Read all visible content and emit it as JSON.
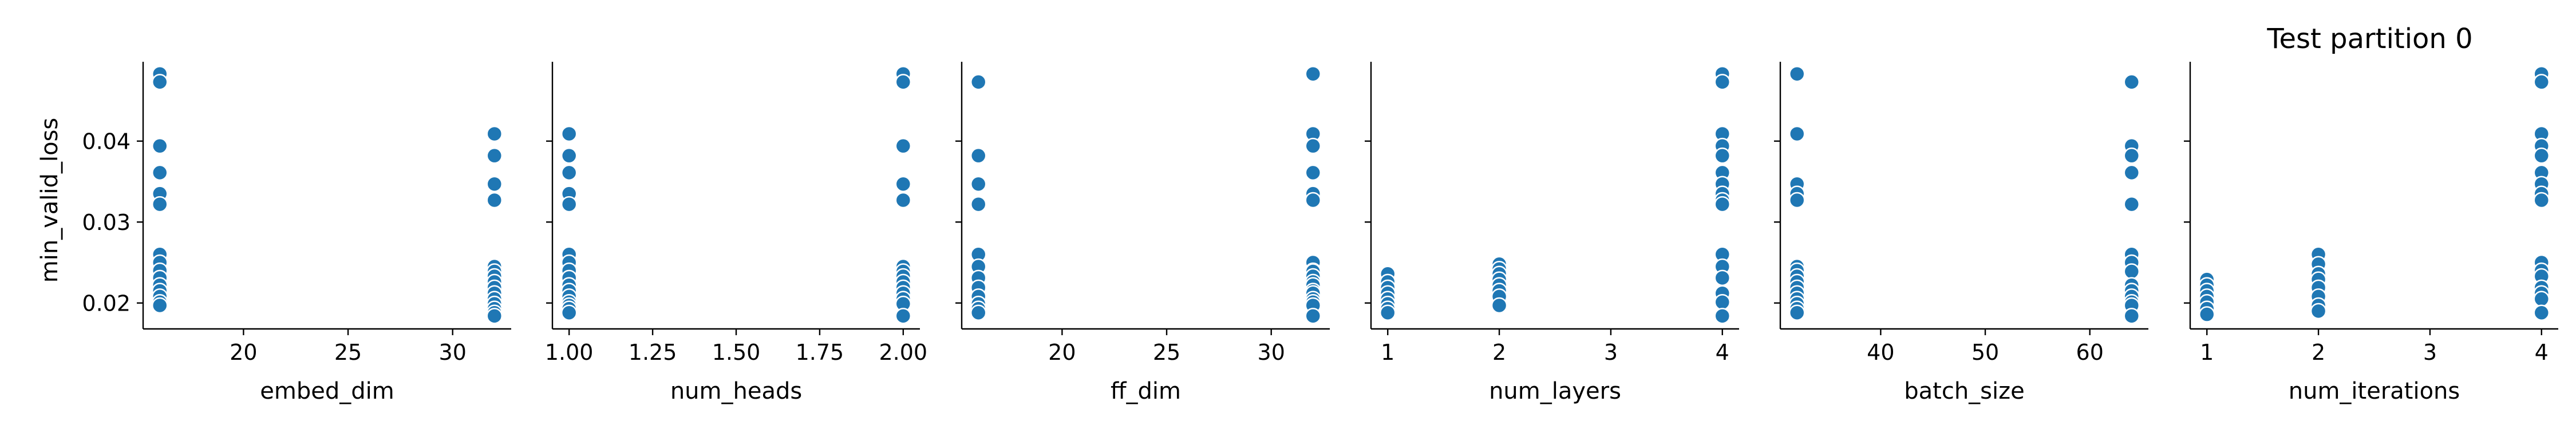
{
  "figure": {
    "title": "Test partition 0",
    "ylabel": "min_valid_loss"
  },
  "style": {
    "marker_color": "#1f77b4",
    "marker_edge": "#ffffff",
    "axis_color": "#000000"
  },
  "chart_data": [
    {
      "type": "scatter",
      "xlabel": "embed_dim",
      "ylabel": "min_valid_loss",
      "xlim": [
        15.2,
        32.8
      ],
      "ylim": [
        0.0168,
        0.0498
      ],
      "xticks": [
        20,
        25,
        30
      ],
      "yticks": [
        0.02,
        0.03,
        0.04
      ],
      "grid": false,
      "points": [
        [
          16,
          0.0483
        ],
        [
          16,
          0.0473
        ],
        [
          16,
          0.0394
        ],
        [
          16,
          0.0361
        ],
        [
          16,
          0.0335
        ],
        [
          16,
          0.0322
        ],
        [
          16,
          0.026
        ],
        [
          16,
          0.025
        ],
        [
          16,
          0.024
        ],
        [
          16,
          0.0231
        ],
        [
          16,
          0.0222
        ],
        [
          16,
          0.0215
        ],
        [
          16,
          0.0208
        ],
        [
          16,
          0.0201
        ],
        [
          16,
          0.0197
        ],
        [
          32,
          0.0409
        ],
        [
          32,
          0.0382
        ],
        [
          32,
          0.0347
        ],
        [
          32,
          0.0327
        ],
        [
          32,
          0.0245
        ],
        [
          32,
          0.0239
        ],
        [
          32,
          0.0233
        ],
        [
          32,
          0.0226
        ],
        [
          32,
          0.0219
        ],
        [
          32,
          0.0212
        ],
        [
          32,
          0.0205
        ],
        [
          32,
          0.0199
        ],
        [
          32,
          0.0193
        ],
        [
          32,
          0.0188
        ],
        [
          32,
          0.0184
        ]
      ]
    },
    {
      "type": "scatter",
      "xlabel": "num_heads",
      "ylabel": "",
      "xlim": [
        0.95,
        2.05
      ],
      "ylim": [
        0.0168,
        0.0498
      ],
      "xticks": [
        1.0,
        1.25,
        1.5,
        1.75,
        2.0
      ],
      "xtick_labels": [
        "1.00",
        "1.25",
        "1.50",
        "1.75",
        "2.00"
      ],
      "grid": false,
      "points": [
        [
          1,
          0.0409
        ],
        [
          1,
          0.0382
        ],
        [
          1,
          0.0361
        ],
        [
          1,
          0.0335
        ],
        [
          1,
          0.0322
        ],
        [
          1,
          0.026
        ],
        [
          1,
          0.025
        ],
        [
          1,
          0.024
        ],
        [
          1,
          0.0231
        ],
        [
          1,
          0.0222
        ],
        [
          1,
          0.0215
        ],
        [
          1,
          0.0208
        ],
        [
          1,
          0.0201
        ],
        [
          1,
          0.0197
        ],
        [
          1,
          0.0193
        ],
        [
          1,
          0.0188
        ],
        [
          2,
          0.0483
        ],
        [
          2,
          0.0473
        ],
        [
          2,
          0.0394
        ],
        [
          2,
          0.0347
        ],
        [
          2,
          0.0327
        ],
        [
          2,
          0.0245
        ],
        [
          2,
          0.0239
        ],
        [
          2,
          0.0233
        ],
        [
          2,
          0.0226
        ],
        [
          2,
          0.0219
        ],
        [
          2,
          0.0212
        ],
        [
          2,
          0.0205
        ],
        [
          2,
          0.0199
        ],
        [
          2,
          0.0184
        ]
      ]
    },
    {
      "type": "scatter",
      "xlabel": "ff_dim",
      "ylabel": "",
      "xlim": [
        15.2,
        32.8
      ],
      "ylim": [
        0.0168,
        0.0498
      ],
      "xticks": [
        20,
        25,
        30
      ],
      "grid": false,
      "points": [
        [
          16,
          0.0473
        ],
        [
          16,
          0.0382
        ],
        [
          16,
          0.0347
        ],
        [
          16,
          0.0322
        ],
        [
          16,
          0.026
        ],
        [
          16,
          0.0245
        ],
        [
          16,
          0.0231
        ],
        [
          16,
          0.0219
        ],
        [
          16,
          0.0208
        ],
        [
          16,
          0.0199
        ],
        [
          16,
          0.0193
        ],
        [
          16,
          0.0188
        ],
        [
          32,
          0.0483
        ],
        [
          32,
          0.0409
        ],
        [
          32,
          0.0394
        ],
        [
          32,
          0.0361
        ],
        [
          32,
          0.0335
        ],
        [
          32,
          0.0327
        ],
        [
          32,
          0.025
        ],
        [
          32,
          0.024
        ],
        [
          32,
          0.0239
        ],
        [
          32,
          0.0233
        ],
        [
          32,
          0.0226
        ],
        [
          32,
          0.0222
        ],
        [
          32,
          0.0215
        ],
        [
          32,
          0.0212
        ],
        [
          32,
          0.0205
        ],
        [
          32,
          0.0201
        ],
        [
          32,
          0.0197
        ],
        [
          32,
          0.0184
        ]
      ]
    },
    {
      "type": "scatter",
      "xlabel": "num_layers",
      "ylabel": "",
      "xlim": [
        0.85,
        4.15
      ],
      "ylim": [
        0.0168,
        0.0498
      ],
      "xticks": [
        1,
        2,
        3,
        4
      ],
      "grid": false,
      "points": [
        [
          1,
          0.0236
        ],
        [
          1,
          0.0226
        ],
        [
          1,
          0.0219
        ],
        [
          1,
          0.0212
        ],
        [
          1,
          0.0205
        ],
        [
          1,
          0.0199
        ],
        [
          1,
          0.0193
        ],
        [
          1,
          0.0188
        ],
        [
          2,
          0.0248
        ],
        [
          2,
          0.0242
        ],
        [
          2,
          0.0236
        ],
        [
          2,
          0.0229
        ],
        [
          2,
          0.0222
        ],
        [
          2,
          0.0215
        ],
        [
          2,
          0.0208
        ],
        [
          2,
          0.0197
        ],
        [
          4,
          0.0483
        ],
        [
          4,
          0.0473
        ],
        [
          4,
          0.0409
        ],
        [
          4,
          0.0394
        ],
        [
          4,
          0.0382
        ],
        [
          4,
          0.0361
        ],
        [
          4,
          0.0347
        ],
        [
          4,
          0.0335
        ],
        [
          4,
          0.0327
        ],
        [
          4,
          0.0322
        ],
        [
          4,
          0.026
        ],
        [
          4,
          0.0245
        ],
        [
          4,
          0.0231
        ],
        [
          4,
          0.0212
        ],
        [
          4,
          0.0201
        ],
        [
          4,
          0.0184
        ]
      ]
    },
    {
      "type": "scatter",
      "xlabel": "batch_size",
      "ylabel": "",
      "xlim": [
        30.4,
        65.6
      ],
      "ylim": [
        0.0168,
        0.0498
      ],
      "xticks": [
        40,
        50,
        60
      ],
      "grid": false,
      "points": [
        [
          32,
          0.0483
        ],
        [
          32,
          0.0409
        ],
        [
          32,
          0.0347
        ],
        [
          32,
          0.0335
        ],
        [
          32,
          0.0327
        ],
        [
          32,
          0.0245
        ],
        [
          32,
          0.024
        ],
        [
          32,
          0.0233
        ],
        [
          32,
          0.0226
        ],
        [
          32,
          0.0219
        ],
        [
          32,
          0.0212
        ],
        [
          32,
          0.0205
        ],
        [
          32,
          0.0199
        ],
        [
          32,
          0.0193
        ],
        [
          32,
          0.0188
        ],
        [
          64,
          0.0473
        ],
        [
          64,
          0.0394
        ],
        [
          64,
          0.0382
        ],
        [
          64,
          0.0361
        ],
        [
          64,
          0.0322
        ],
        [
          64,
          0.026
        ],
        [
          64,
          0.025
        ],
        [
          64,
          0.0239
        ],
        [
          64,
          0.0222
        ],
        [
          64,
          0.0215
        ],
        [
          64,
          0.0208
        ],
        [
          64,
          0.0201
        ],
        [
          64,
          0.0197
        ],
        [
          64,
          0.0184
        ]
      ]
    },
    {
      "type": "scatter",
      "xlabel": "num_iterations",
      "ylabel": "",
      "xlim": [
        0.85,
        4.15
      ],
      "ylim": [
        0.0168,
        0.0498
      ],
      "xticks": [
        1,
        2,
        3,
        4
      ],
      "grid": false,
      "points": [
        [
          1,
          0.0229
        ],
        [
          1,
          0.0222
        ],
        [
          1,
          0.0215
        ],
        [
          1,
          0.0208
        ],
        [
          1,
          0.0201
        ],
        [
          1,
          0.0193
        ],
        [
          1,
          0.0186
        ],
        [
          2,
          0.026
        ],
        [
          2,
          0.0248
        ],
        [
          2,
          0.0236
        ],
        [
          2,
          0.0229
        ],
        [
          2,
          0.0219
        ],
        [
          2,
          0.0208
        ],
        [
          2,
          0.0197
        ],
        [
          2,
          0.019
        ],
        [
          4,
          0.0483
        ],
        [
          4,
          0.0473
        ],
        [
          4,
          0.0409
        ],
        [
          4,
          0.0394
        ],
        [
          4,
          0.0382
        ],
        [
          4,
          0.0361
        ],
        [
          4,
          0.0347
        ],
        [
          4,
          0.0335
        ],
        [
          4,
          0.0327
        ],
        [
          4,
          0.025
        ],
        [
          4,
          0.024
        ],
        [
          4,
          0.0233
        ],
        [
          4,
          0.0219
        ],
        [
          4,
          0.0212
        ],
        [
          4,
          0.0205
        ],
        [
          4,
          0.0188
        ]
      ]
    }
  ]
}
